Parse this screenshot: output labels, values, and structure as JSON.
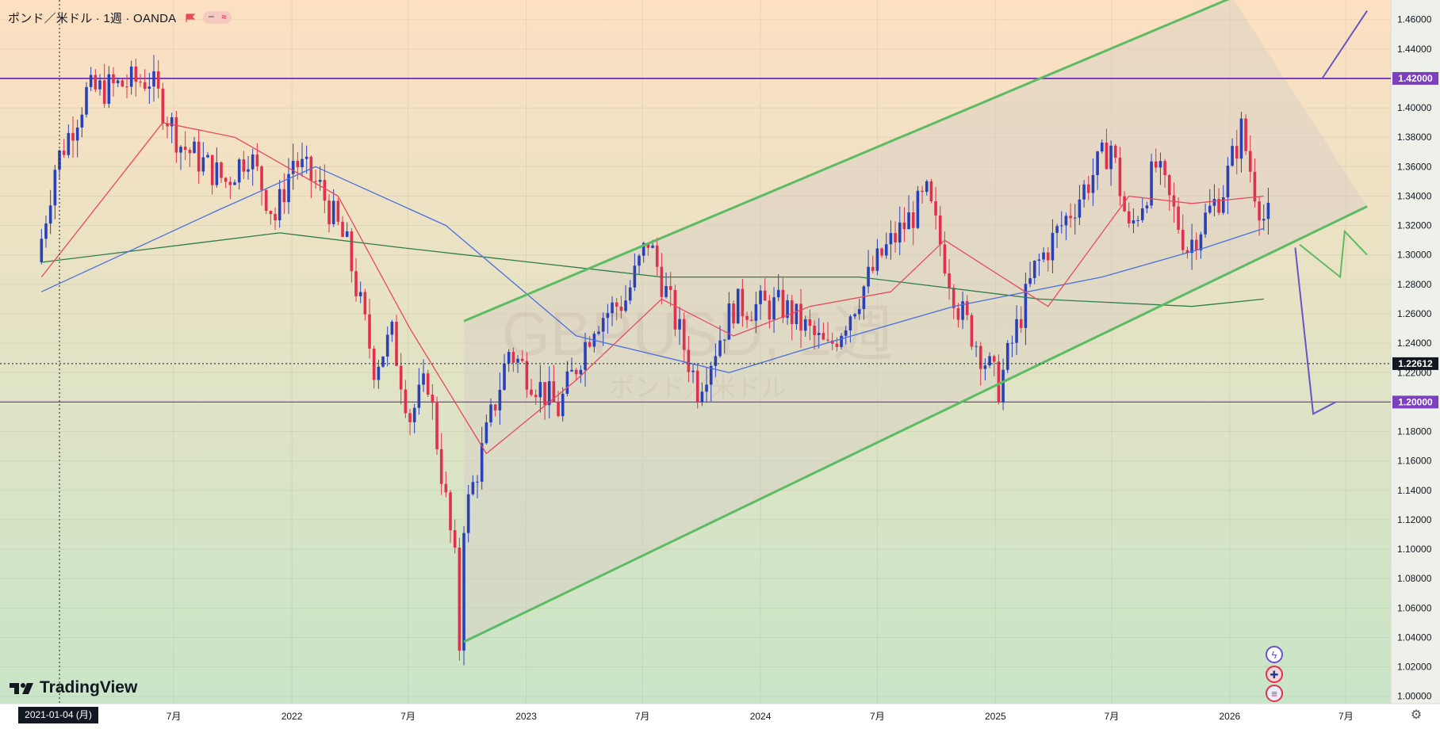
{
  "header": {
    "title": "ポンド／米ドル · 1週 · OANDA"
  },
  "watermark": {
    "symbol": "GBPUSD, 1週",
    "name": "ポンド／米ドル"
  },
  "logo_text": "TradingView",
  "crosshair_date": "2021-01-04 (月)",
  "colors": {
    "background_top": "#fde0c2",
    "background_bottom": "#c9e5c7",
    "up_candle": "#2941b8",
    "down_candle": "#e0304d",
    "sma_fast": "#e8485f",
    "sma_mid": "#4a6fe0",
    "sma_slow": "#2e7d4a",
    "channel": "#5dbb63",
    "horizontal_line": "#7b3fc0",
    "forecast": "#6654c9"
  },
  "chart_data": {
    "type": "candlestick",
    "interval": "1W",
    "ylim": [
      0.995,
      1.4733
    ],
    "y_ticks": [
      "1.00000",
      "1.02000",
      "1.04000",
      "1.06000",
      "1.08000",
      "1.10000",
      "1.12000",
      "1.14000",
      "1.16000",
      "1.18000",
      "1.20000",
      "1.22000",
      "1.24000",
      "1.26000",
      "1.28000",
      "1.30000",
      "1.32000",
      "1.34000",
      "1.36000",
      "1.38000",
      "1.40000",
      "1.42000",
      "1.44000",
      "1.46000"
    ],
    "x_ticks": [
      {
        "label": "7月",
        "date": "2021-07"
      },
      {
        "label": "2022",
        "date": "2022-01"
      },
      {
        "label": "7月",
        "date": "2022-07"
      },
      {
        "label": "2023",
        "date": "2023-01"
      },
      {
        "label": "7月",
        "date": "2023-07"
      },
      {
        "label": "2024",
        "date": "2024-01"
      },
      {
        "label": "7月",
        "date": "2024-07"
      },
      {
        "label": "2025",
        "date": "2025-01"
      },
      {
        "label": "7月",
        "date": "2025-07"
      },
      {
        "label": "2026",
        "date": "2026-01"
      },
      {
        "label": "7月",
        "date": "2026-07"
      }
    ],
    "horizontal_lines": [
      {
        "price": 1.42,
        "label": "1.42000"
      },
      {
        "price": 1.2,
        "label": "1.20000"
      }
    ],
    "crosshair_price": {
      "price": 1.22612,
      "label": "1.22612"
    },
    "price_path": [
      [
        "2020-12-07",
        1.295
      ],
      [
        "2021-01-04",
        1.36
      ],
      [
        "2021-02-22",
        1.41
      ],
      [
        "2021-05-31",
        1.42
      ],
      [
        "2021-07-19",
        1.375
      ],
      [
        "2021-09-27",
        1.35
      ],
      [
        "2021-11-01",
        1.37
      ],
      [
        "2021-12-13",
        1.325
      ],
      [
        "2022-01-10",
        1.365
      ],
      [
        "2022-02-21",
        1.345
      ],
      [
        "2022-04-04",
        1.305
      ],
      [
        "2022-05-16",
        1.225
      ],
      [
        "2022-06-13",
        1.245
      ],
      [
        "2022-07-11",
        1.19
      ],
      [
        "2022-08-08",
        1.215
      ],
      [
        "2022-09-19",
        1.09
      ],
      [
        "2022-09-26",
        1.035
      ],
      [
        "2022-10-03",
        1.12
      ],
      [
        "2022-12-12",
        1.235
      ],
      [
        "2023-02-27",
        1.195
      ],
      [
        "2023-04-24",
        1.255
      ],
      [
        "2023-06-12",
        1.27
      ],
      [
        "2023-07-17",
        1.31
      ],
      [
        "2023-08-21",
        1.265
      ],
      [
        "2023-10-02",
        1.21
      ],
      [
        "2023-11-27",
        1.265
      ],
      [
        "2024-02-12",
        1.265
      ],
      [
        "2024-04-22",
        1.235
      ],
      [
        "2024-07-15",
        1.3
      ],
      [
        "2024-09-23",
        1.34
      ],
      [
        "2024-11-11",
        1.265
      ],
      [
        "2025-01-13",
        1.21
      ],
      [
        "2025-03-10",
        1.29
      ],
      [
        "2025-05-19",
        1.34
      ],
      [
        "2025-07-07",
        1.375
      ],
      [
        "2025-08-04",
        1.315
      ],
      [
        "2025-09-15",
        1.36
      ],
      [
        "2025-11-03",
        1.305
      ],
      [
        "2025-12-29",
        1.345
      ],
      [
        "2026-01-26",
        1.385
      ],
      [
        "2026-02-16",
        1.345
      ],
      [
        "2026-03-02",
        1.325
      ]
    ],
    "sma_fast_path": [
      [
        "2020-12-07",
        1.285
      ],
      [
        "2021-06-14",
        1.39
      ],
      [
        "2021-10-04",
        1.38
      ],
      [
        "2022-03-14",
        1.34
      ],
      [
        "2022-07-04",
        1.25
      ],
      [
        "2022-10-31",
        1.165
      ],
      [
        "2023-03-20",
        1.215
      ],
      [
        "2023-07-31",
        1.27
      ],
      [
        "2023-11-20",
        1.245
      ],
      [
        "2024-03-18",
        1.265
      ],
      [
        "2024-07-22",
        1.275
      ],
      [
        "2024-10-14",
        1.31
      ],
      [
        "2025-03-24",
        1.265
      ],
      [
        "2025-07-28",
        1.34
      ],
      [
        "2025-11-03",
        1.335
      ],
      [
        "2026-02-23",
        1.34
      ]
    ],
    "sma_mid_path": [
      [
        "2020-12-07",
        1.275
      ],
      [
        "2021-09-06",
        1.33
      ],
      [
        "2022-02-07",
        1.36
      ],
      [
        "2022-08-29",
        1.32
      ],
      [
        "2023-03-20",
        1.245
      ],
      [
        "2023-11-13",
        1.22
      ],
      [
        "2024-03-04",
        1.235
      ],
      [
        "2024-10-28",
        1.265
      ],
      [
        "2025-06-16",
        1.285
      ],
      [
        "2025-11-24",
        1.305
      ],
      [
        "2026-02-23",
        1.318
      ]
    ],
    "sma_slow_path": [
      [
        "2020-12-07",
        1.295
      ],
      [
        "2021-12-13",
        1.315
      ],
      [
        "2022-06-20",
        1.305
      ],
      [
        "2023-07-31",
        1.285
      ],
      [
        "2024-06-03",
        1.285
      ],
      [
        "2025-03-10",
        1.27
      ],
      [
        "2025-11-03",
        1.265
      ],
      [
        "2026-02-23",
        1.27
      ]
    ],
    "channel_upper": [
      [
        "2022-09-26",
        1.255
      ],
      [
        "2026-01-05",
        1.475
      ]
    ],
    "channel_lower": [
      [
        "2022-09-26",
        1.037
      ],
      [
        "2026-08-03",
        1.333
      ]
    ],
    "channel_fill_corners": [
      [
        "2022-09-26",
        1.255
      ],
      [
        "2026-01-05",
        1.475
      ],
      [
        "2026-08-03",
        1.333
      ],
      [
        "2022-09-26",
        1.037
      ]
    ],
    "forecast_purple": [
      [
        "2026-05-25",
        1.42
      ],
      [
        "2026-08-03",
        1.466
      ]
    ],
    "forecast_purple_2": [
      [
        "2026-04-13",
        1.305
      ],
      [
        "2026-05-11",
        1.192
      ],
      [
        "2026-06-15",
        1.2
      ]
    ],
    "forecast_green": [
      [
        "2026-04-20",
        1.307
      ],
      [
        "2026-06-22",
        1.285
      ],
      [
        "2026-06-29",
        1.316
      ],
      [
        "2026-08-03",
        1.3
      ]
    ]
  }
}
